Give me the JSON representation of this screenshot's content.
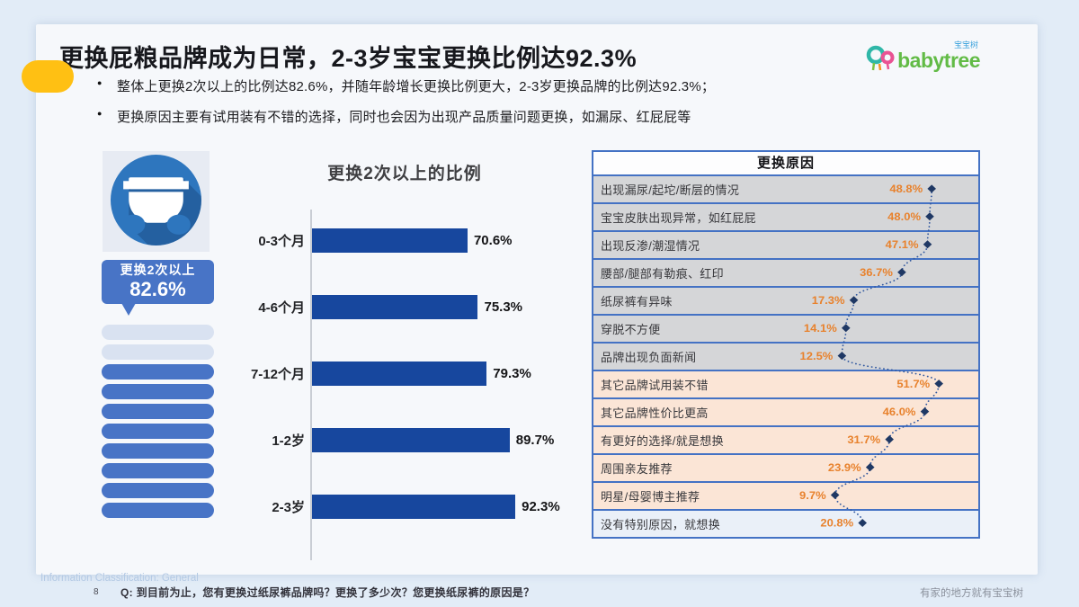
{
  "slide": {
    "title": "更换屁粮品牌成为日常，2-3岁宝宝更换比例达92.3%",
    "bullets": [
      "整体上更换2次以上的比例达82.6%，并随年龄增长更换比例更大，2-3岁更换品牌的比例达92.3%；",
      "更换原因主要有试用装有不错的选择，同时也会因为出现产品质量问题更换，如漏尿、红屁屁等"
    ]
  },
  "logo": {
    "brand": "babytree",
    "cn": "宝宝树"
  },
  "left_panel": {
    "callout_line1": "更换2次以上",
    "callout_value": "82.6%",
    "pills_light": 2,
    "pills_dark": 8
  },
  "footer": {
    "classification": "Information Classification: General",
    "page": "8",
    "question": "Q: 到目前为止，您有更换过纸尿裤品牌吗？更换了多少次？您更换纸尿裤的原因是？",
    "tagline": "有家的地方就有宝宝树"
  },
  "colors": {
    "accent_yellow": "#ffc013",
    "bar_navy": "#17479e",
    "pill_blue": "#4874c6",
    "pill_light": "#d9e2f1",
    "circle_blue": "#2e76be",
    "value_orange": "#e8822d",
    "border_blue": "#4472c4",
    "row_gray": "#d5d6d8",
    "row_peach": "#fbe5d6",
    "row_lightblue": "#eaf0f8",
    "dotted_navy": "#31589f",
    "page_bg": "#e2ecf7"
  },
  "chart_data": [
    {
      "type": "bar",
      "title": "更换2次以上的比例",
      "orientation": "horizontal",
      "categories": [
        "0-3个月",
        "4-6个月",
        "7-12个月",
        "1-2岁",
        "2-3岁"
      ],
      "values": [
        70.6,
        75.3,
        79.3,
        89.7,
        92.3
      ],
      "value_labels": [
        "70.6%",
        "75.3%",
        "79.3%",
        "89.7%",
        "92.3%"
      ],
      "xlim": [
        0,
        100
      ],
      "grid": false,
      "bar_color": "#17479e"
    },
    {
      "type": "table",
      "title": "更换原因",
      "annotation_style": "dotted-scatter-line",
      "rows": [
        {
          "label": "出现漏尿/起坨/断层的情况",
          "value": 48.8,
          "value_label": "48.8%",
          "group": "quality"
        },
        {
          "label": "宝宝皮肤出现异常，如红屁屁",
          "value": 48.0,
          "value_label": "48.0%",
          "group": "quality"
        },
        {
          "label": "出现反渗/潮湿情况",
          "value": 47.1,
          "value_label": "47.1%",
          "group": "quality"
        },
        {
          "label": "腰部/腿部有勒痕、红印",
          "value": 36.7,
          "value_label": "36.7%",
          "group": "quality"
        },
        {
          "label": "纸尿裤有异味",
          "value": 17.3,
          "value_label": "17.3%",
          "group": "quality"
        },
        {
          "label": "穿脱不方便",
          "value": 14.1,
          "value_label": "14.1%",
          "group": "quality"
        },
        {
          "label": "品牌出现负面新闻",
          "value": 12.5,
          "value_label": "12.5%",
          "group": "quality"
        },
        {
          "label": "其它品牌试用装不错",
          "value": 51.7,
          "value_label": "51.7%",
          "group": "attract"
        },
        {
          "label": "其它品牌性价比更高",
          "value": 46.0,
          "value_label": "46.0%",
          "group": "attract"
        },
        {
          "label": "有更好的选择/就是想换",
          "value": 31.7,
          "value_label": "31.7%",
          "group": "attract"
        },
        {
          "label": "周围亲友推荐",
          "value": 23.9,
          "value_label": "23.9%",
          "group": "attract"
        },
        {
          "label": "明星/母婴博主推荐",
          "value": 9.7,
          "value_label": "9.7%",
          "group": "attract"
        },
        {
          "label": "没有特别原因，就想换",
          "value": 20.8,
          "value_label": "20.8%",
          "group": "none"
        }
      ]
    }
  ]
}
